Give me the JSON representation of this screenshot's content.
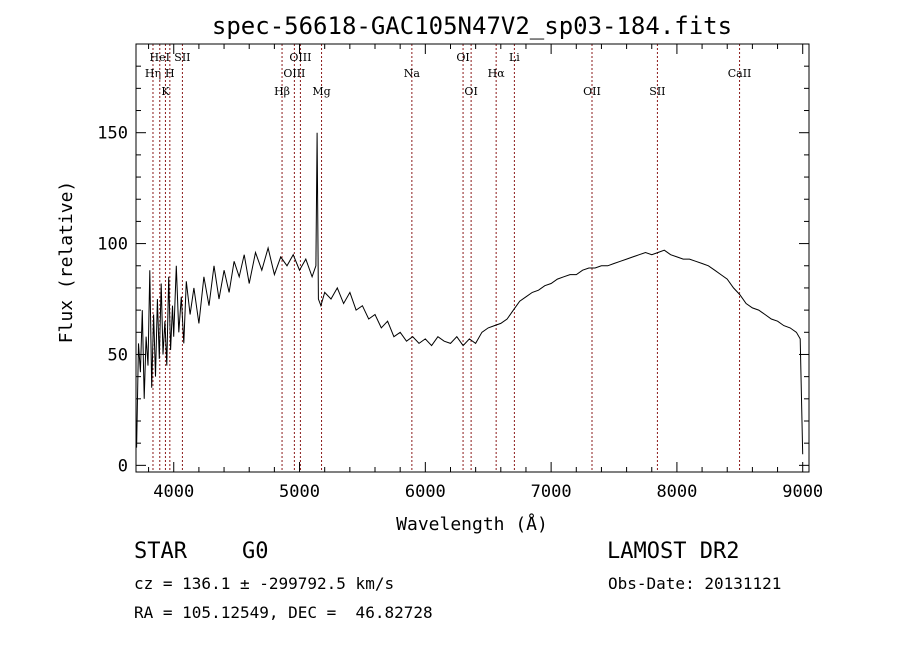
{
  "chart_data": {
    "type": "line",
    "title": "spec-56618-GAC105N47V2_sp03-184.fits",
    "xlabel": "Wavelength (Å)",
    "ylabel": "Flux (relative)",
    "xlim": [
      3700,
      9050
    ],
    "ylim": [
      -3,
      190
    ],
    "xticks": [
      4000,
      5000,
      6000,
      7000,
      8000,
      9000
    ],
    "yticks": [
      0,
      50,
      100,
      150
    ],
    "grid": false,
    "line_color": "#000000",
    "marker_color": "#8b1a1a",
    "series": [
      {
        "points": [
          [
            3705,
            8
          ],
          [
            3720,
            55
          ],
          [
            3735,
            42
          ],
          [
            3750,
            70
          ],
          [
            3765,
            30
          ],
          [
            3780,
            58
          ],
          [
            3795,
            45
          ],
          [
            3810,
            88
          ],
          [
            3825,
            35
          ],
          [
            3840,
            68
          ],
          [
            3855,
            40
          ],
          [
            3870,
            75
          ],
          [
            3885,
            48
          ],
          [
            3900,
            82
          ],
          [
            3915,
            50
          ],
          [
            3930,
            65
          ],
          [
            3945,
            45
          ],
          [
            3960,
            85
          ],
          [
            3975,
            52
          ],
          [
            3990,
            72
          ],
          [
            4000,
            58
          ],
          [
            4020,
            90
          ],
          [
            4040,
            60
          ],
          [
            4060,
            76
          ],
          [
            4080,
            55
          ],
          [
            4100,
            83
          ],
          [
            4130,
            68
          ],
          [
            4160,
            80
          ],
          [
            4200,
            64
          ],
          [
            4240,
            85
          ],
          [
            4280,
            72
          ],
          [
            4320,
            90
          ],
          [
            4360,
            75
          ],
          [
            4400,
            88
          ],
          [
            4440,
            78
          ],
          [
            4480,
            92
          ],
          [
            4520,
            85
          ],
          [
            4560,
            95
          ],
          [
            4600,
            82
          ],
          [
            4650,
            96
          ],
          [
            4700,
            88
          ],
          [
            4750,
            98
          ],
          [
            4800,
            86
          ],
          [
            4850,
            94
          ],
          [
            4900,
            90
          ],
          [
            4950,
            95
          ],
          [
            5000,
            88
          ],
          [
            5050,
            93
          ],
          [
            5100,
            85
          ],
          [
            5130,
            90
          ],
          [
            5140,
            150
          ],
          [
            5150,
            75
          ],
          [
            5170,
            72
          ],
          [
            5200,
            78
          ],
          [
            5250,
            75
          ],
          [
            5300,
            80
          ],
          [
            5350,
            73
          ],
          [
            5400,
            78
          ],
          [
            5450,
            70
          ],
          [
            5500,
            72
          ],
          [
            5550,
            66
          ],
          [
            5600,
            68
          ],
          [
            5650,
            62
          ],
          [
            5700,
            65
          ],
          [
            5750,
            58
          ],
          [
            5800,
            60
          ],
          [
            5850,
            56
          ],
          [
            5900,
            58
          ],
          [
            5950,
            55
          ],
          [
            6000,
            57
          ],
          [
            6050,
            54
          ],
          [
            6100,
            58
          ],
          [
            6150,
            56
          ],
          [
            6200,
            55
          ],
          [
            6250,
            58
          ],
          [
            6300,
            54
          ],
          [
            6350,
            57
          ],
          [
            6400,
            55
          ],
          [
            6450,
            60
          ],
          [
            6500,
            62
          ],
          [
            6550,
            63
          ],
          [
            6600,
            64
          ],
          [
            6650,
            66
          ],
          [
            6700,
            70
          ],
          [
            6750,
            74
          ],
          [
            6800,
            76
          ],
          [
            6850,
            78
          ],
          [
            6900,
            79
          ],
          [
            6950,
            81
          ],
          [
            7000,
            82
          ],
          [
            7050,
            84
          ],
          [
            7100,
            85
          ],
          [
            7150,
            86
          ],
          [
            7200,
            86
          ],
          [
            7250,
            88
          ],
          [
            7300,
            89
          ],
          [
            7350,
            89
          ],
          [
            7400,
            90
          ],
          [
            7450,
            90
          ],
          [
            7500,
            91
          ],
          [
            7550,
            92
          ],
          [
            7600,
            93
          ],
          [
            7650,
            94
          ],
          [
            7700,
            95
          ],
          [
            7750,
            96
          ],
          [
            7800,
            95
          ],
          [
            7850,
            96
          ],
          [
            7900,
            97
          ],
          [
            7950,
            95
          ],
          [
            8000,
            94
          ],
          [
            8050,
            93
          ],
          [
            8100,
            93
          ],
          [
            8150,
            92
          ],
          [
            8200,
            91
          ],
          [
            8250,
            90
          ],
          [
            8300,
            88
          ],
          [
            8350,
            86
          ],
          [
            8400,
            84
          ],
          [
            8450,
            80
          ],
          [
            8500,
            77
          ],
          [
            8550,
            73
          ],
          [
            8600,
            71
          ],
          [
            8650,
            70
          ],
          [
            8700,
            68
          ],
          [
            8750,
            66
          ],
          [
            8800,
            65
          ],
          [
            8850,
            63
          ],
          [
            8900,
            62
          ],
          [
            8950,
            60
          ],
          [
            8980,
            57
          ],
          [
            9000,
            5
          ]
        ]
      }
    ],
    "lines": [
      {
        "label": "Hη",
        "x": 3835,
        "row": 2
      },
      {
        "label": "HeI",
        "x": 3889,
        "row": 1
      },
      {
        "label": "K",
        "x": 3934,
        "row": 3
      },
      {
        "label": "H",
        "x": 3969,
        "row": 2
      },
      {
        "label": "SII",
        "x": 4069,
        "row": 1
      },
      {
        "label": "Hβ",
        "x": 4861,
        "row": 3
      },
      {
        "label": "OIII",
        "x": 4959,
        "row": 2
      },
      {
        "label": "OIII",
        "x": 5007,
        "row": 1
      },
      {
        "label": "Mg",
        "x": 5175,
        "row": 3
      },
      {
        "label": "Na",
        "x": 5893,
        "row": 2
      },
      {
        "label": "OI",
        "x": 6300,
        "row": 1
      },
      {
        "label": "OI",
        "x": 6364,
        "row": 3
      },
      {
        "label": "Hα",
        "x": 6563,
        "row": 2
      },
      {
        "label": "Li",
        "x": 6708,
        "row": 1
      },
      {
        "label": "OII",
        "x": 7325,
        "row": 3
      },
      {
        "label": "SII",
        "x": 7845,
        "row": 3
      },
      {
        "label": "CaII",
        "x": 8498,
        "row": 2
      }
    ]
  },
  "info": {
    "class_label": "STAR",
    "subclass": "G0",
    "survey": "LAMOST DR2",
    "velocity": "cz = 136.1 ± -299792.5 km/s",
    "obs_date": "Obs-Date: 20131121",
    "coords": "RA = 105.12549, DEC =  46.82728"
  }
}
